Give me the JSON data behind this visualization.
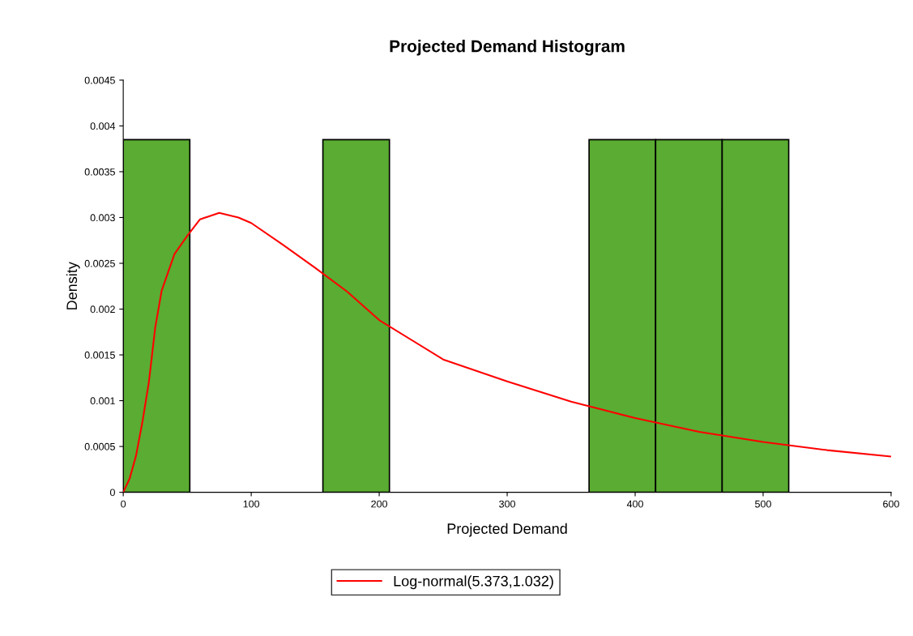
{
  "chart_data": {
    "type": "histogram",
    "title": "Projected Demand Histogram",
    "xlabel": "Projected Demand",
    "ylabel": "Density",
    "bins": [
      0,
      52,
      104,
      156,
      208,
      260,
      312,
      364,
      416,
      468,
      520
    ],
    "values": [
      0.00385,
      0,
      0,
      0.00385,
      0,
      0,
      0,
      0.00385,
      0.00385,
      0.00385
    ],
    "color": "#5aac32",
    "series": [
      {
        "name": "Log-normal(5.373,1.032)",
        "type": "line",
        "color": "#ff0000",
        "x": [
          0,
          5,
          10,
          15,
          20,
          25,
          30,
          40,
          50,
          60,
          75,
          90,
          100,
          125,
          150,
          175,
          200,
          250,
          300,
          350,
          400,
          450,
          500,
          550,
          600
        ],
        "values": [
          0,
          0.00015,
          0.0004,
          0.00077,
          0.0012,
          0.0018,
          0.0022,
          0.0026,
          0.0028,
          0.00298,
          0.00305,
          0.003,
          0.00294,
          0.0027,
          0.00245,
          0.00219,
          0.00188,
          0.00145,
          0.00121,
          0.00099,
          0.00081,
          0.00066,
          0.00055,
          0.00046,
          0.00039
        ]
      }
    ],
    "xlim": [
      0,
      600
    ],
    "xticks": [
      0,
      100,
      200,
      300,
      400,
      500,
      600
    ],
    "ylim": [
      0,
      0.0045
    ],
    "yticks": [
      0,
      0.0005,
      0.001,
      0.0015,
      0.002,
      0.0025,
      0.003,
      0.0035,
      0.004,
      0.0045
    ],
    "grid": false,
    "legend": "bottom"
  }
}
